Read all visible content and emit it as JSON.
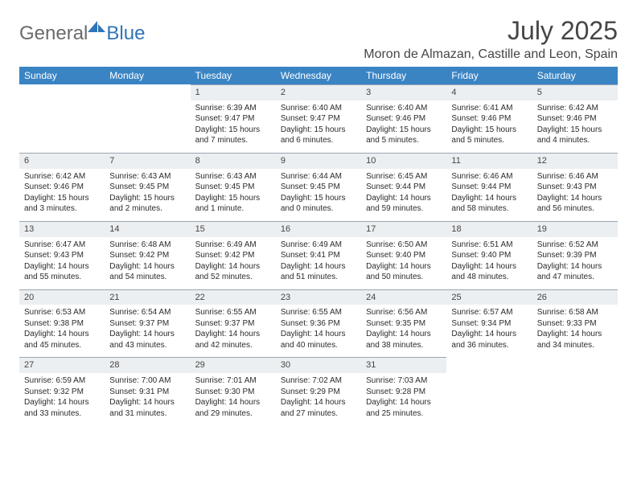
{
  "logo": {
    "general": "General",
    "blue": "Blue"
  },
  "title": "July 2025",
  "location": "Moron de Almazan, Castille and Leon, Spain",
  "header_bg": "#3a84c4",
  "daynum_bg": "#eceff1",
  "daynum_border": "#9aa6b2",
  "day_headers": [
    "Sunday",
    "Monday",
    "Tuesday",
    "Wednesday",
    "Thursday",
    "Friday",
    "Saturday"
  ],
  "weeks": [
    [
      null,
      null,
      {
        "n": "1",
        "sr": "Sunrise: 6:39 AM",
        "ss": "Sunset: 9:47 PM",
        "dl": "Daylight: 15 hours and 7 minutes."
      },
      {
        "n": "2",
        "sr": "Sunrise: 6:40 AM",
        "ss": "Sunset: 9:47 PM",
        "dl": "Daylight: 15 hours and 6 minutes."
      },
      {
        "n": "3",
        "sr": "Sunrise: 6:40 AM",
        "ss": "Sunset: 9:46 PM",
        "dl": "Daylight: 15 hours and 5 minutes."
      },
      {
        "n": "4",
        "sr": "Sunrise: 6:41 AM",
        "ss": "Sunset: 9:46 PM",
        "dl": "Daylight: 15 hours and 5 minutes."
      },
      {
        "n": "5",
        "sr": "Sunrise: 6:42 AM",
        "ss": "Sunset: 9:46 PM",
        "dl": "Daylight: 15 hours and 4 minutes."
      }
    ],
    [
      {
        "n": "6",
        "sr": "Sunrise: 6:42 AM",
        "ss": "Sunset: 9:46 PM",
        "dl": "Daylight: 15 hours and 3 minutes."
      },
      {
        "n": "7",
        "sr": "Sunrise: 6:43 AM",
        "ss": "Sunset: 9:45 PM",
        "dl": "Daylight: 15 hours and 2 minutes."
      },
      {
        "n": "8",
        "sr": "Sunrise: 6:43 AM",
        "ss": "Sunset: 9:45 PM",
        "dl": "Daylight: 15 hours and 1 minute."
      },
      {
        "n": "9",
        "sr": "Sunrise: 6:44 AM",
        "ss": "Sunset: 9:45 PM",
        "dl": "Daylight: 15 hours and 0 minutes."
      },
      {
        "n": "10",
        "sr": "Sunrise: 6:45 AM",
        "ss": "Sunset: 9:44 PM",
        "dl": "Daylight: 14 hours and 59 minutes."
      },
      {
        "n": "11",
        "sr": "Sunrise: 6:46 AM",
        "ss": "Sunset: 9:44 PM",
        "dl": "Daylight: 14 hours and 58 minutes."
      },
      {
        "n": "12",
        "sr": "Sunrise: 6:46 AM",
        "ss": "Sunset: 9:43 PM",
        "dl": "Daylight: 14 hours and 56 minutes."
      }
    ],
    [
      {
        "n": "13",
        "sr": "Sunrise: 6:47 AM",
        "ss": "Sunset: 9:43 PM",
        "dl": "Daylight: 14 hours and 55 minutes."
      },
      {
        "n": "14",
        "sr": "Sunrise: 6:48 AM",
        "ss": "Sunset: 9:42 PM",
        "dl": "Daylight: 14 hours and 54 minutes."
      },
      {
        "n": "15",
        "sr": "Sunrise: 6:49 AM",
        "ss": "Sunset: 9:42 PM",
        "dl": "Daylight: 14 hours and 52 minutes."
      },
      {
        "n": "16",
        "sr": "Sunrise: 6:49 AM",
        "ss": "Sunset: 9:41 PM",
        "dl": "Daylight: 14 hours and 51 minutes."
      },
      {
        "n": "17",
        "sr": "Sunrise: 6:50 AM",
        "ss": "Sunset: 9:40 PM",
        "dl": "Daylight: 14 hours and 50 minutes."
      },
      {
        "n": "18",
        "sr": "Sunrise: 6:51 AM",
        "ss": "Sunset: 9:40 PM",
        "dl": "Daylight: 14 hours and 48 minutes."
      },
      {
        "n": "19",
        "sr": "Sunrise: 6:52 AM",
        "ss": "Sunset: 9:39 PM",
        "dl": "Daylight: 14 hours and 47 minutes."
      }
    ],
    [
      {
        "n": "20",
        "sr": "Sunrise: 6:53 AM",
        "ss": "Sunset: 9:38 PM",
        "dl": "Daylight: 14 hours and 45 minutes."
      },
      {
        "n": "21",
        "sr": "Sunrise: 6:54 AM",
        "ss": "Sunset: 9:37 PM",
        "dl": "Daylight: 14 hours and 43 minutes."
      },
      {
        "n": "22",
        "sr": "Sunrise: 6:55 AM",
        "ss": "Sunset: 9:37 PM",
        "dl": "Daylight: 14 hours and 42 minutes."
      },
      {
        "n": "23",
        "sr": "Sunrise: 6:55 AM",
        "ss": "Sunset: 9:36 PM",
        "dl": "Daylight: 14 hours and 40 minutes."
      },
      {
        "n": "24",
        "sr": "Sunrise: 6:56 AM",
        "ss": "Sunset: 9:35 PM",
        "dl": "Daylight: 14 hours and 38 minutes."
      },
      {
        "n": "25",
        "sr": "Sunrise: 6:57 AM",
        "ss": "Sunset: 9:34 PM",
        "dl": "Daylight: 14 hours and 36 minutes."
      },
      {
        "n": "26",
        "sr": "Sunrise: 6:58 AM",
        "ss": "Sunset: 9:33 PM",
        "dl": "Daylight: 14 hours and 34 minutes."
      }
    ],
    [
      {
        "n": "27",
        "sr": "Sunrise: 6:59 AM",
        "ss": "Sunset: 9:32 PM",
        "dl": "Daylight: 14 hours and 33 minutes."
      },
      {
        "n": "28",
        "sr": "Sunrise: 7:00 AM",
        "ss": "Sunset: 9:31 PM",
        "dl": "Daylight: 14 hours and 31 minutes."
      },
      {
        "n": "29",
        "sr": "Sunrise: 7:01 AM",
        "ss": "Sunset: 9:30 PM",
        "dl": "Daylight: 14 hours and 29 minutes."
      },
      {
        "n": "30",
        "sr": "Sunrise: 7:02 AM",
        "ss": "Sunset: 9:29 PM",
        "dl": "Daylight: 14 hours and 27 minutes."
      },
      {
        "n": "31",
        "sr": "Sunrise: 7:03 AM",
        "ss": "Sunset: 9:28 PM",
        "dl": "Daylight: 14 hours and 25 minutes."
      },
      null,
      null
    ]
  ]
}
